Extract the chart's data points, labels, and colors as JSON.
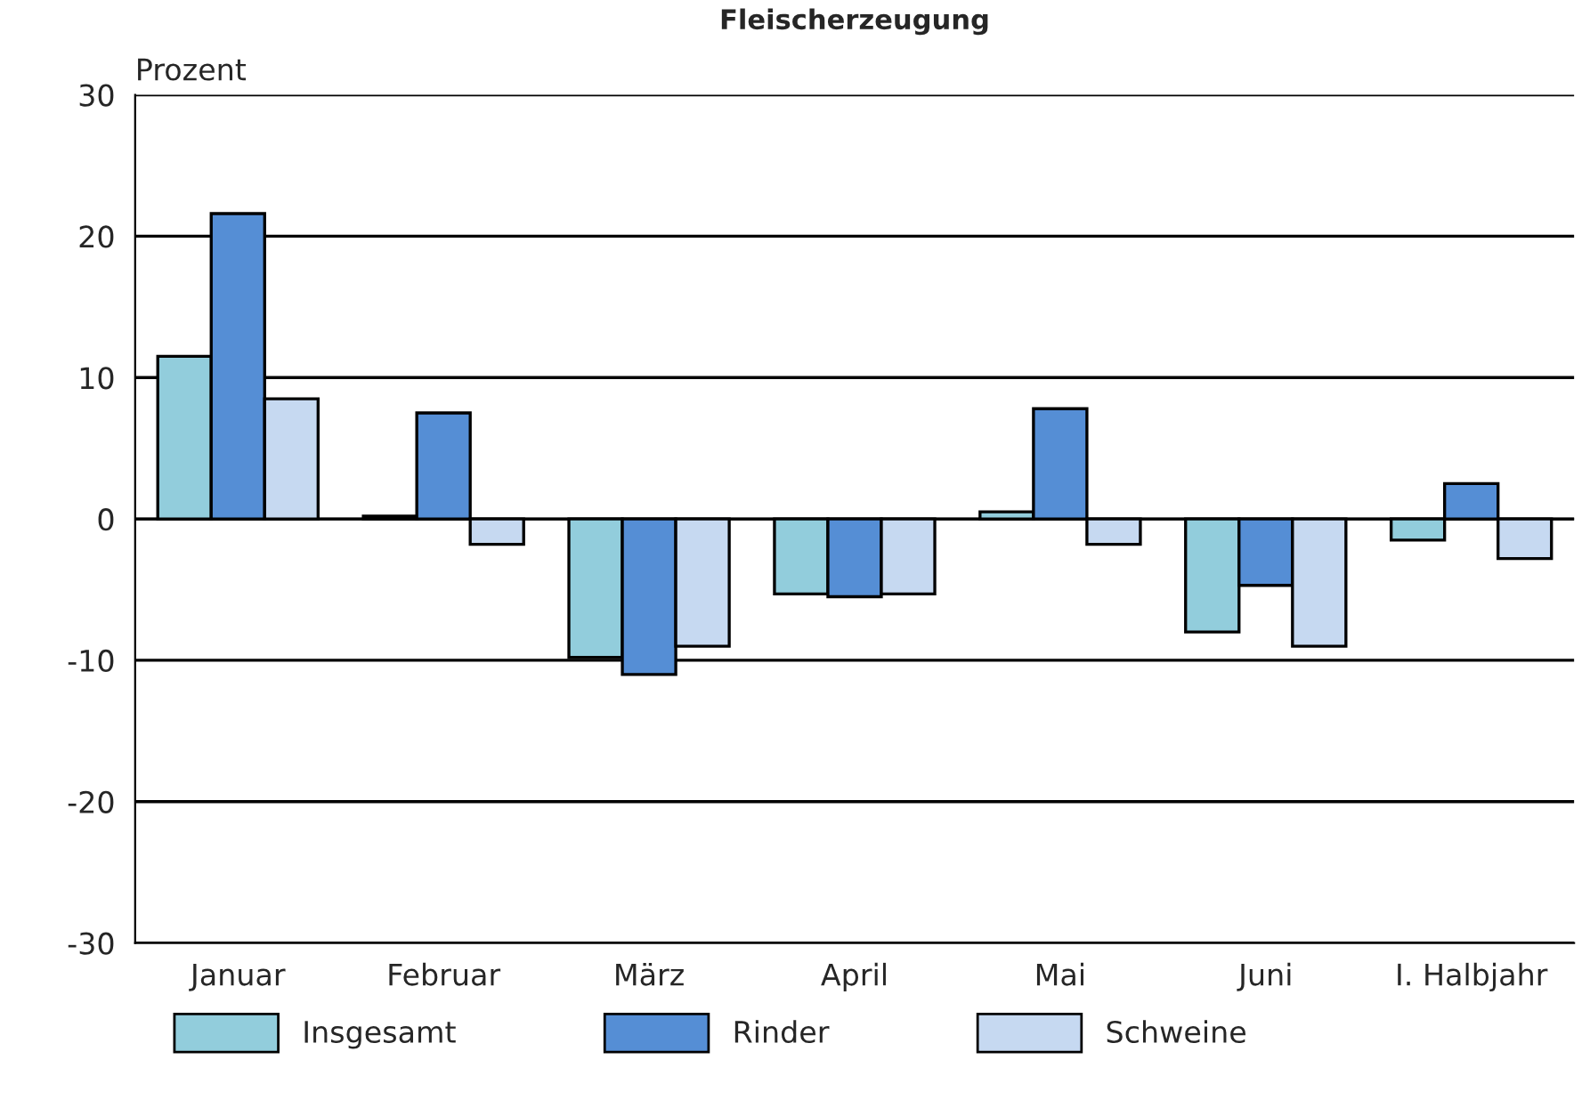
{
  "chart_data": {
    "type": "bar",
    "title": "Fleischerzeugung",
    "ylabel": "Prozent",
    "categories": [
      "Januar",
      "Februar",
      "März",
      "April",
      "Mai",
      "Juni",
      "I. Halbjahr"
    ],
    "series": [
      {
        "name": "Insgesamt",
        "color": "#92cddc",
        "values": [
          11.5,
          0.2,
          -9.8,
          -5.3,
          0.5,
          -8.0,
          -1.5
        ]
      },
      {
        "name": "Rinder",
        "color": "#558ed5",
        "values": [
          21.6,
          7.5,
          -11.0,
          -5.5,
          7.8,
          -4.7,
          2.5
        ]
      },
      {
        "name": "Schweine",
        "color": "#c6d9f1",
        "values": [
          8.5,
          -1.8,
          -9.0,
          -5.3,
          -1.8,
          -9.0,
          -2.8
        ]
      }
    ],
    "ylim": [
      -30,
      30
    ],
    "yticks": [
      -30,
      -20,
      -10,
      0,
      10,
      20,
      30
    ],
    "grid": "y",
    "legend": "bottom"
  }
}
